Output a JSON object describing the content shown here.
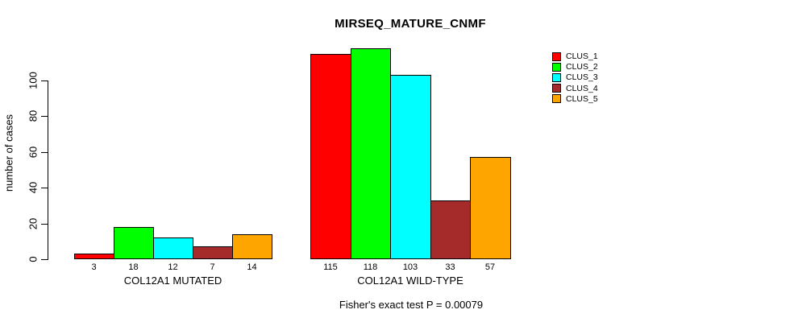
{
  "title": "MIRSEQ_MATURE_CNMF",
  "y_axis": {
    "label": "number of cases",
    "ticks": [
      0,
      20,
      40,
      60,
      80,
      100
    ]
  },
  "footer": "Fisher's exact test P = 0.00079",
  "legend": {
    "items": [
      {
        "label": "CLUS_1",
        "color": "#FF0000"
      },
      {
        "label": "CLUS_2",
        "color": "#00FF00"
      },
      {
        "label": "CLUS_3",
        "color": "#00FFFF"
      },
      {
        "label": "CLUS_4",
        "color": "#A52A2A"
      },
      {
        "label": "CLUS_5",
        "color": "#FFA500"
      }
    ]
  },
  "chart_data": {
    "type": "bar",
    "title": "MIRSEQ_MATURE_CNMF",
    "ylabel": "number of cases",
    "ylim": [
      0,
      120
    ],
    "yticks": [
      0,
      20,
      40,
      60,
      80,
      100
    ],
    "grid": false,
    "legend_position": "top-right",
    "series_names": [
      "CLUS_1",
      "CLUS_2",
      "CLUS_3",
      "CLUS_4",
      "CLUS_5"
    ],
    "colors": [
      "#FF0000",
      "#00FF00",
      "#00FFFF",
      "#A52A2A",
      "#FFA500"
    ],
    "groups": [
      {
        "label": "COL12A1 MUTATED",
        "values": [
          3,
          18,
          12,
          7,
          14
        ]
      },
      {
        "label": "COL12A1 WILD-TYPE",
        "values": [
          115,
          118,
          103,
          33,
          57
        ]
      }
    ],
    "annotation": "Fisher's exact test P = 0.00079"
  }
}
